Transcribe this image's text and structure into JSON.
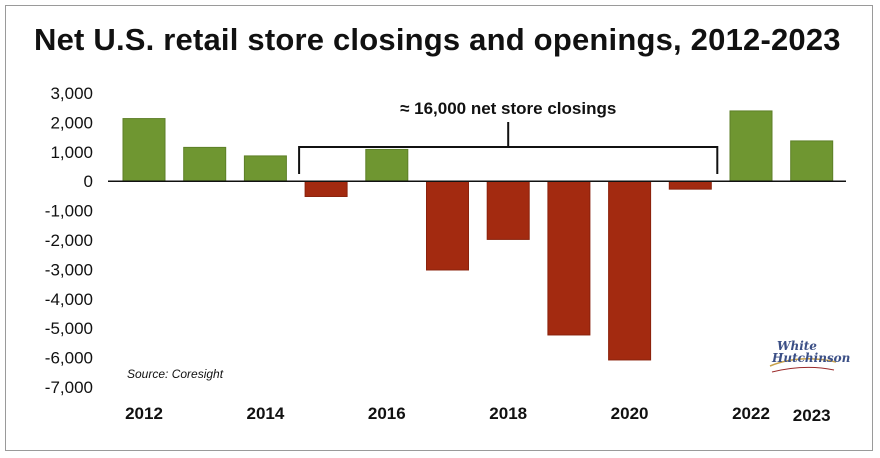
{
  "title": "Net U.S. retail store closings and openings, 2012-2023",
  "source": "Source: Coresight",
  "logo": {
    "line1": "White",
    "line2": "Hutchinson"
  },
  "colors": {
    "positive": "#6f9631",
    "negative": "#a32a10",
    "zero_line": "#111111"
  },
  "chart_data": {
    "type": "bar",
    "categories": [
      "2012",
      "2013",
      "2014",
      "2015",
      "2016",
      "2017",
      "2018",
      "2019",
      "2020",
      "2021",
      "2022",
      "2023"
    ],
    "values": [
      2130,
      1150,
      860,
      -520,
      1080,
      -3020,
      -1980,
      -5230,
      -6080,
      -270,
      2390,
      1370
    ],
    "x_tick_labels": [
      "2012",
      "",
      "2014",
      "",
      "2016",
      "",
      "2018",
      "",
      "2020",
      "",
      "2022",
      "2023"
    ],
    "ylim": [
      -7000,
      3000
    ],
    "y_ticks": [
      3000,
      2000,
      1000,
      0,
      -1000,
      -2000,
      -3000,
      -4000,
      -5000,
      -6000,
      -7000
    ],
    "y_tick_labels": [
      "3,000",
      "2,000",
      "1,000",
      "0",
      "-1,000",
      "-2,000",
      "-3,000",
      "-4,000",
      "-5,000",
      "-6,000",
      "-7,000"
    ],
    "grid": false,
    "xlabel": "",
    "ylabel": "",
    "annotation": {
      "text": "≈ 16,000 net store closings",
      "from_category": "2015",
      "to_category": "2021"
    }
  }
}
